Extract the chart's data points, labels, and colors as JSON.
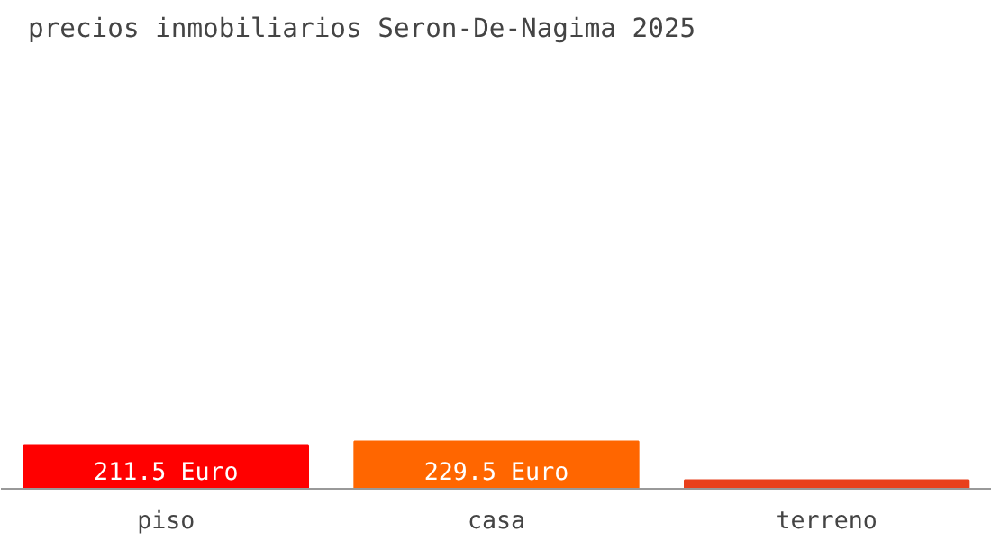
{
  "chart_data": {
    "type": "bar",
    "title": "precios inmobiliarios Seron-De-Nagima 2025",
    "categories": [
      "piso",
      "casa",
      "terreno"
    ],
    "values": [
      211.5,
      229.5,
      41
    ],
    "colors": [
      "#ff0000",
      "#ff6600",
      "#e8401c"
    ],
    "value_labels": [
      "211.5 Euro",
      "229.5 Euro",
      null
    ],
    "grid": false
  }
}
